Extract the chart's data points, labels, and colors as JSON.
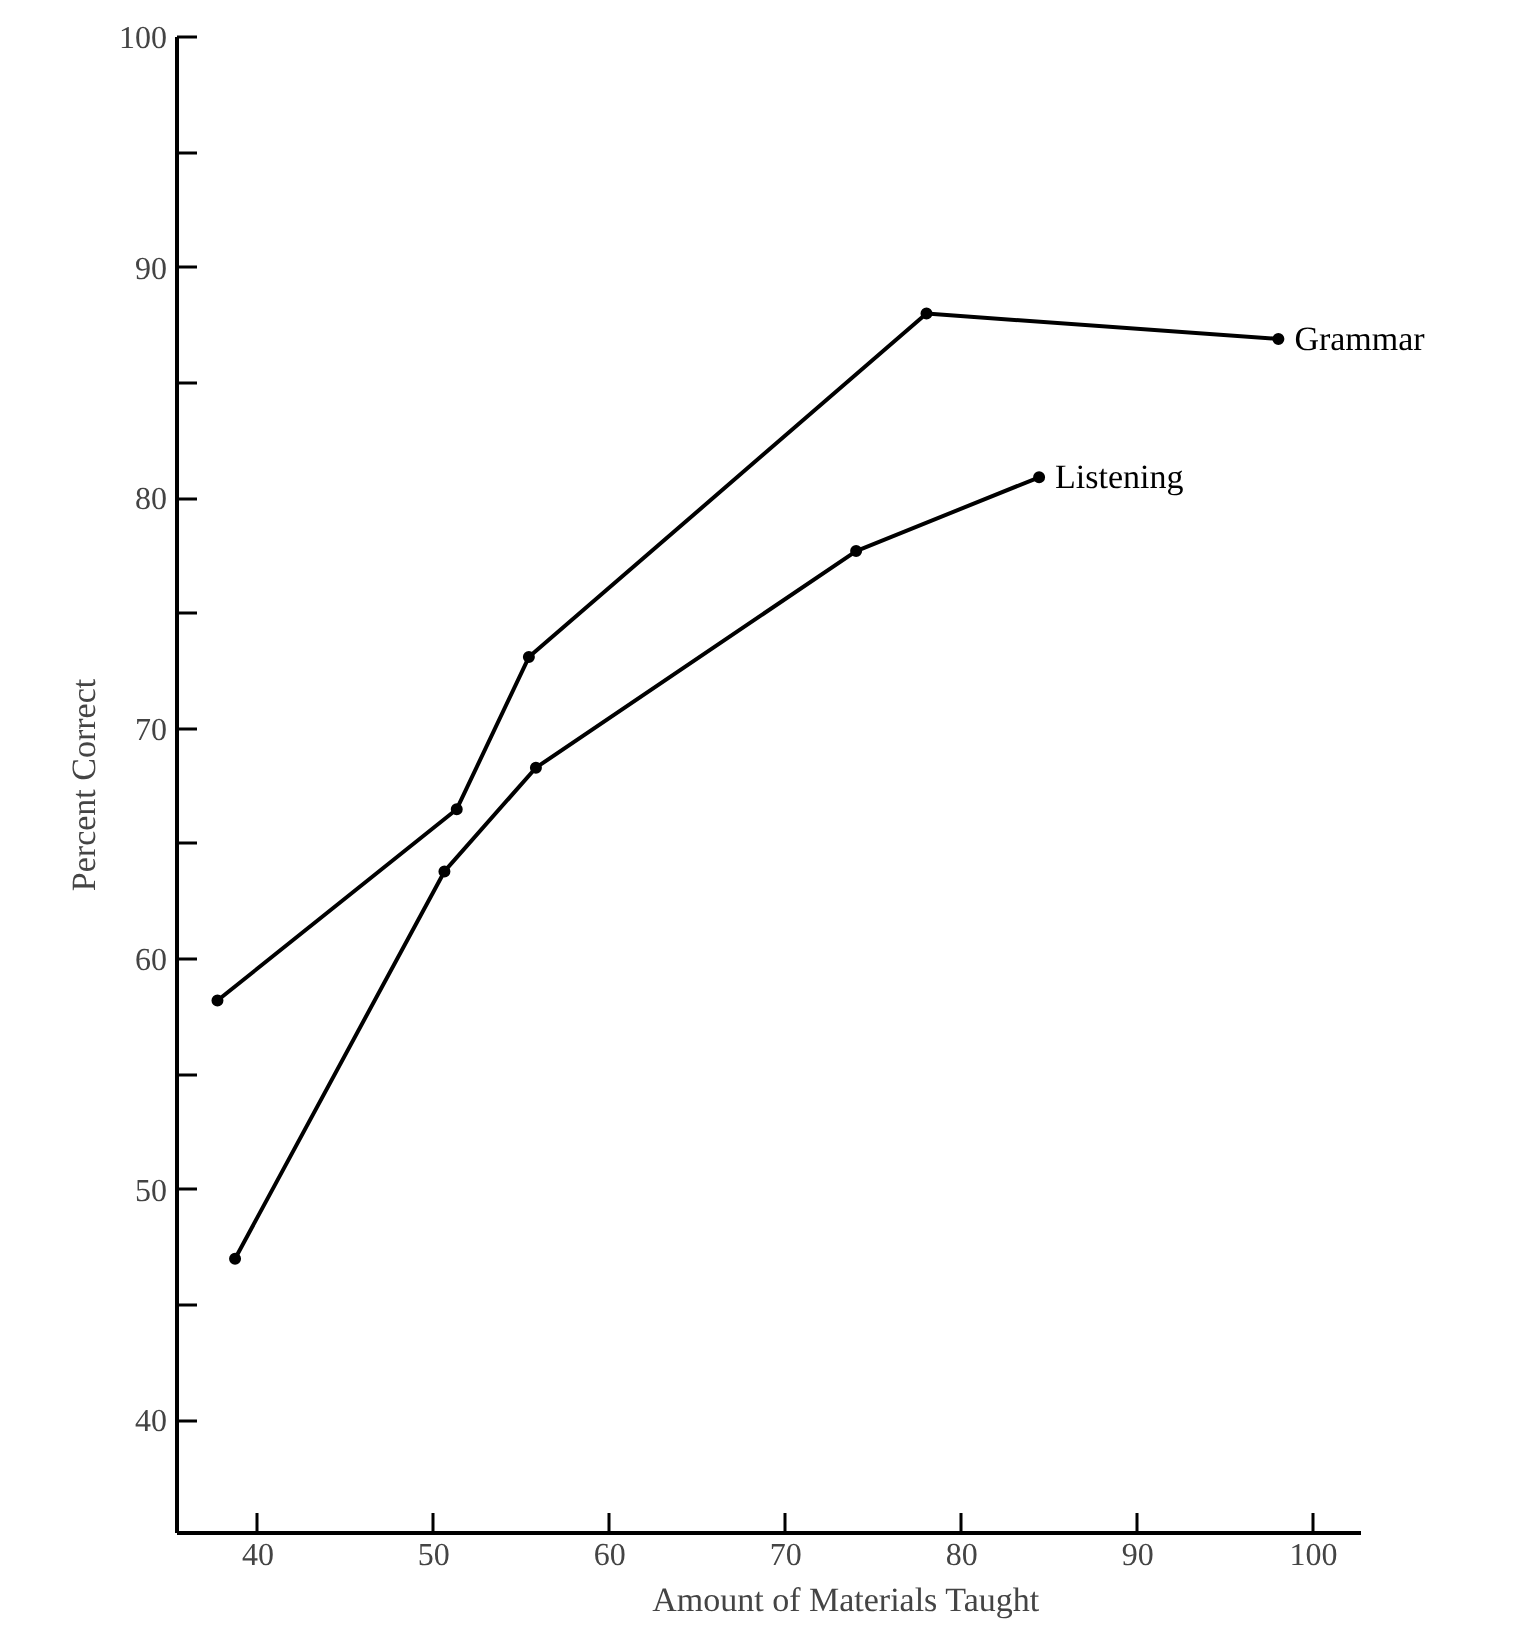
{
  "chart_data": {
    "type": "line",
    "xlabel": "Amount of Materials Taught",
    "ylabel": "Percent Correct",
    "xlim": [
      35.4,
      102.7
    ],
    "ylim": [
      35.1,
      100
    ],
    "xticks": [
      40,
      50,
      60,
      70,
      80,
      90,
      100
    ],
    "yticks": [
      40,
      {
        "value": 45,
        "label": null
      },
      50,
      {
        "value": 55,
        "label": null
      },
      60,
      {
        "value": 65,
        "label": null
      },
      70,
      {
        "value": 75,
        "label": null
      },
      80,
      {
        "value": 85,
        "label": null
      },
      90,
      {
        "value": 95,
        "label": null
      },
      100
    ],
    "grid": false,
    "marker": "circle",
    "line_style": "solid",
    "series": [
      {
        "name": "Grammar",
        "color": "#000000",
        "x": [
          37.7,
          51.3,
          55.4,
          78.0,
          98.0
        ],
        "values": [
          58.2,
          66.5,
          73.1,
          88.0,
          86.9
        ]
      },
      {
        "name": "Listening",
        "color": "#000000",
        "x": [
          38.7,
          50.6,
          55.8,
          74.0,
          84.4
        ],
        "values": [
          47.0,
          63.8,
          68.3,
          77.7,
          80.9
        ]
      }
    ]
  }
}
